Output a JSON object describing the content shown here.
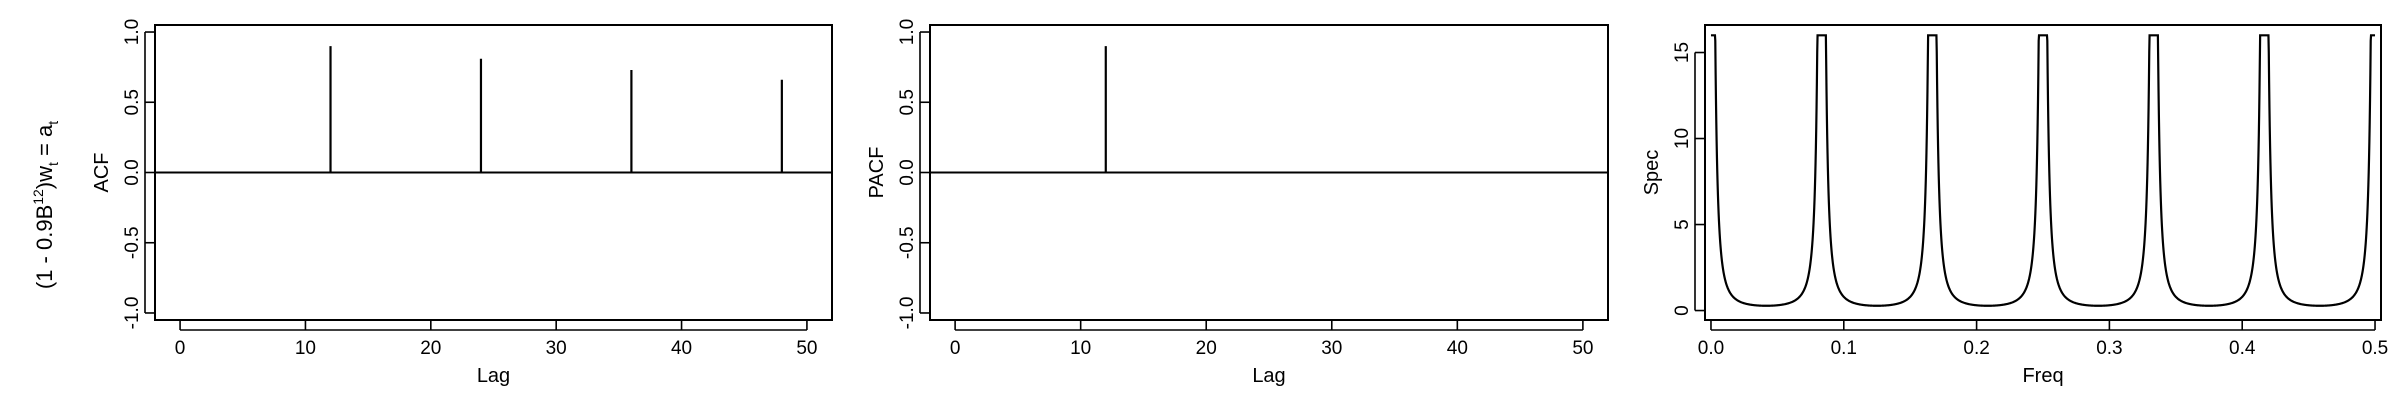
{
  "row_label": {
    "prefix": "(1 - 0.9B",
    "sup": "12",
    "mid": ")w",
    "sub1": "t",
    "eq": " = a",
    "sub2": "t"
  },
  "chart_data": [
    {
      "type": "bar",
      "panel": "acf",
      "xlabel": "Lag",
      "ylabel": "ACF",
      "xlim": [
        0,
        52
      ],
      "ylim": [
        -1.0,
        1.0
      ],
      "xticks": [
        0,
        10,
        20,
        30,
        40,
        50
      ],
      "yticks": [
        -1.0,
        -0.5,
        0.0,
        0.5,
        1.0
      ],
      "x": [
        12,
        24,
        36,
        48
      ],
      "values": [
        0.9,
        0.81,
        0.73,
        0.66
      ],
      "grid": false
    },
    {
      "type": "bar",
      "panel": "pacf",
      "xlabel": "Lag",
      "ylabel": "PACF",
      "xlim": [
        0,
        52
      ],
      "ylim": [
        -1.0,
        1.0
      ],
      "xticks": [
        0,
        10,
        20,
        30,
        40,
        50
      ],
      "yticks": [
        -1.0,
        -0.5,
        0.0,
        0.5,
        1.0
      ],
      "x": [
        12
      ],
      "values": [
        0.9
      ],
      "grid": false
    },
    {
      "type": "line",
      "panel": "spec",
      "xlabel": "Freq",
      "ylabel": "Spec",
      "xlim": [
        0,
        0.5
      ],
      "ylim": [
        0,
        16
      ],
      "xticks": [
        0.0,
        0.1,
        0.2,
        0.3,
        0.4,
        0.5
      ],
      "yticks": [
        0,
        5,
        10,
        15
      ],
      "formula": "spectrum of (1 - 0.9B^12)w_t = a_t",
      "phi": 0.9,
      "period": 12,
      "peaks_at": [
        0,
        0.0833,
        0.1667,
        0.25,
        0.3333,
        0.4167,
        0.5
      ],
      "peak_value": 16,
      "grid": false
    }
  ]
}
